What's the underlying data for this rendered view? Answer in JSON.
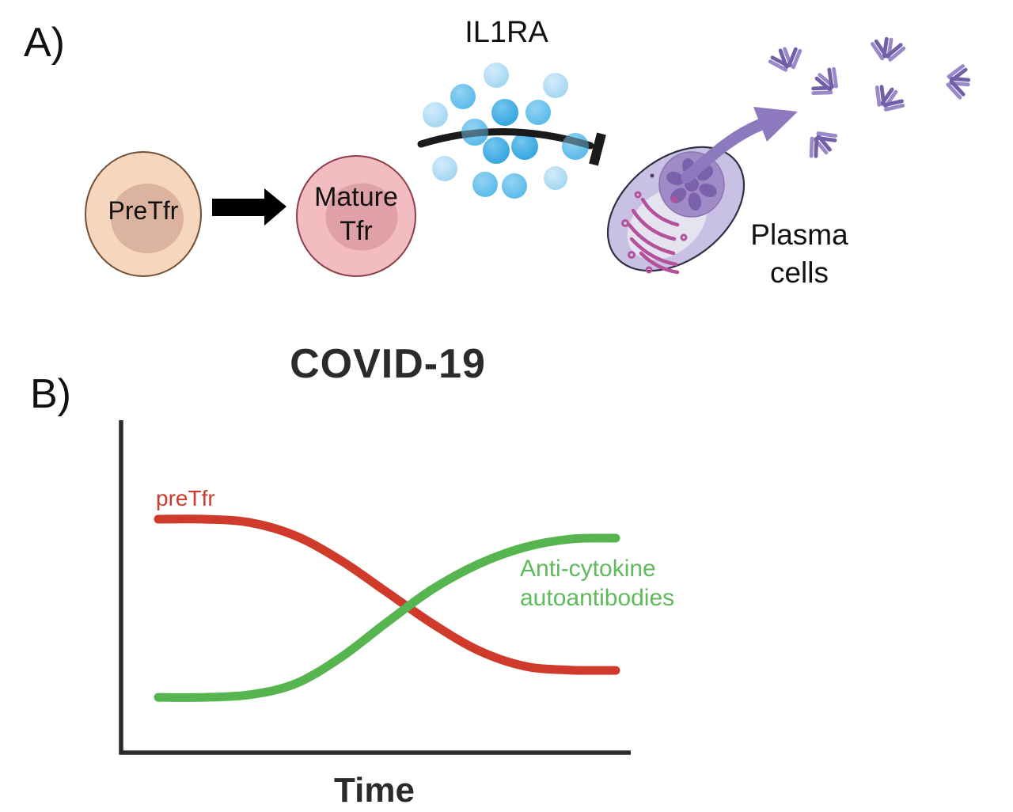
{
  "panel_a": {
    "label": "A)",
    "pre_tfr": {
      "label": "PreTfr",
      "body_color": "#f6d6bd",
      "nucleus_color": "#dcb39e",
      "outline_color": "#6e5138"
    },
    "mature_tfr": {
      "line1": "Mature",
      "line2": "Tfr",
      "body_color": "#f2bcc1",
      "nucleus_color": "#dfa0a8",
      "outline_color": "#8b4049"
    },
    "il1ra_label": "IL1RA",
    "cytokine_dot_colors": {
      "light": "#a6d9f4",
      "mid": "#5fc0ec",
      "dark": "#35a8e0"
    },
    "inhibition_color": "#1a1a1a",
    "plasma_cells": {
      "line1": "Plasma",
      "line2": "cells",
      "body_color": "#c9c1e3",
      "nucleus_color": "#a08bc6",
      "nucleus_detail_color": "#7b61ab",
      "er_color": "#b5519b",
      "arrow_color": "#8d79bd"
    },
    "antibody_color": "#7f6cb4"
  },
  "panel_b": {
    "label": "B)",
    "title": "COVID-19",
    "pretfr_label": "preTfr",
    "anti_label_line1": "Anti-cytokine",
    "anti_label_line2": "autoantibodies",
    "xlabel": "Time",
    "axis_color": "#2b2b2b"
  },
  "chart_data": {
    "type": "line",
    "title": "COVID-19",
    "xlabel": "Time",
    "ylabel": "",
    "x": [
      0,
      1,
      2,
      3,
      4,
      5,
      6,
      7,
      8,
      9,
      10
    ],
    "xlim": [
      0,
      10
    ],
    "ylim": [
      0,
      1
    ],
    "grid": false,
    "legend_position": "inline-curve-labels",
    "series": [
      {
        "name": "preTfr",
        "color": "#cf3a2b",
        "values": [
          0.7,
          0.7,
          0.69,
          0.65,
          0.575,
          0.48,
          0.385,
          0.305,
          0.258,
          0.246,
          0.245
        ]
      },
      {
        "name": "Anti-cytokine autoantibodies",
        "color": "#56b54f",
        "values": [
          0.164,
          0.164,
          0.172,
          0.205,
          0.285,
          0.39,
          0.49,
          0.565,
          0.615,
          0.64,
          0.643
        ]
      }
    ]
  }
}
